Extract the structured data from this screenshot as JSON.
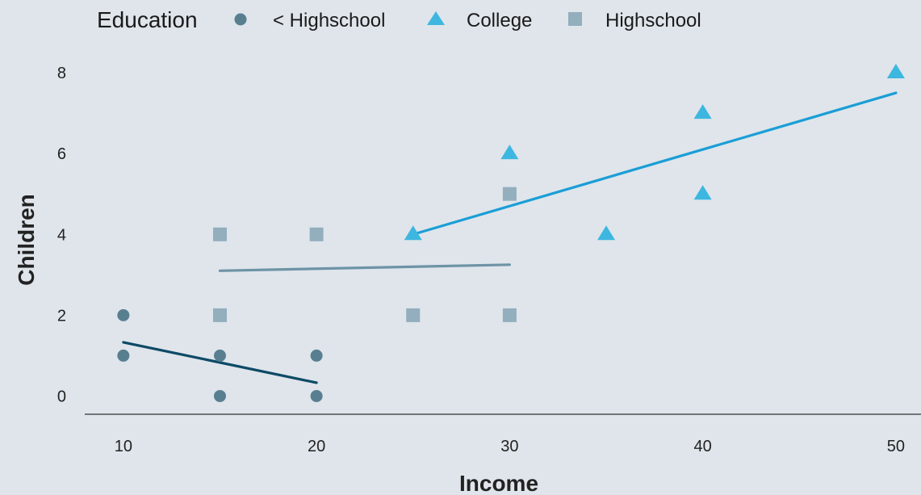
{
  "chart_data": {
    "type": "scatter",
    "xlabel": "Income",
    "ylabel": "Children",
    "x_ticks": [
      10,
      20,
      30,
      40,
      50
    ],
    "y_ticks": [
      0,
      2,
      4,
      6,
      8
    ],
    "xlim": [
      8,
      51.3
    ],
    "ylim": [
      -0.45,
      8.7
    ],
    "grid": false,
    "legend": {
      "title": "Education",
      "position": "top",
      "entries": [
        "< Highschool",
        "College",
        "Highschool"
      ]
    },
    "series": [
      {
        "name": "< Highschool",
        "marker": "circle",
        "color": "#587f90",
        "points": [
          [
            10,
            2
          ],
          [
            10,
            1
          ],
          [
            15,
            1
          ],
          [
            15,
            0
          ],
          [
            20,
            1
          ],
          [
            20,
            0
          ]
        ],
        "fit": {
          "x": [
            10,
            20
          ],
          "y": [
            1.33,
            0.33
          ],
          "color": "#0d4a66"
        }
      },
      {
        "name": "College",
        "marker": "triangle",
        "color": "#3db7e0",
        "points": [
          [
            25,
            4
          ],
          [
            30,
            6
          ],
          [
            35,
            4
          ],
          [
            40,
            7
          ],
          [
            40,
            5
          ],
          [
            50,
            8
          ]
        ],
        "fit": {
          "x": [
            25,
            50
          ],
          "y": [
            4.0,
            7.5
          ],
          "color": "#1a9ed6"
        }
      },
      {
        "name": "Highschool",
        "marker": "square",
        "color": "#93aebd",
        "points": [
          [
            15,
            4
          ],
          [
            15,
            2
          ],
          [
            20,
            4
          ],
          [
            25,
            2
          ],
          [
            30,
            5
          ],
          [
            30,
            2
          ]
        ],
        "fit": {
          "x": [
            15,
            30
          ],
          "y": [
            3.1,
            3.25
          ],
          "color": "#6e93a6"
        }
      }
    ]
  }
}
